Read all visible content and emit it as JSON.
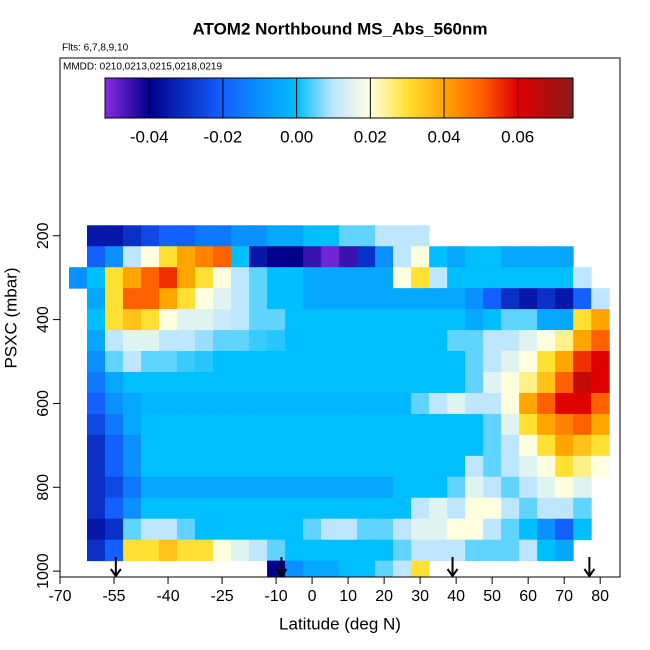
{
  "chart_data": {
    "type": "heatmap",
    "title": "ATOM2 Northbound MS_Abs_560nm",
    "subtitle": "Flts: 6,7,8,9,10",
    "annotation": "MMDD: 0210,0213,0215,0218,0219",
    "x_label": "Latitude (deg N)",
    "y_label": "PSXC (mbar)",
    "x": [
      -65,
      -60,
      -55,
      -50,
      -45,
      -40,
      -35,
      -30,
      -25,
      -20,
      -15,
      -10,
      -5,
      0,
      5,
      10,
      15,
      20,
      25,
      30,
      35,
      40,
      45,
      50,
      55,
      60,
      65,
      70,
      75,
      80
    ],
    "y": [
      200,
      250,
      300,
      350,
      400,
      450,
      500,
      550,
      600,
      650,
      700,
      750,
      800,
      850,
      900,
      950,
      1000
    ],
    "z": [
      [
        null,
        -0.035,
        -0.035,
        -0.03,
        -0.025,
        -0.02,
        -0.02,
        -0.015,
        -0.015,
        -0.01,
        -0.01,
        -0.005,
        -0.005,
        0,
        0,
        0.005,
        0.005,
        0.01,
        0.01,
        0.01,
        null,
        null,
        null,
        null,
        null,
        null,
        null,
        null,
        null,
        null
      ],
      [
        null,
        -0.02,
        -0.01,
        0.01,
        0.02,
        0.03,
        0.04,
        0.045,
        0.05,
        0,
        -0.035,
        -0.04,
        -0.04,
        -0.045,
        -0.05,
        -0.045,
        -0.03,
        -0.01,
        0.01,
        0.02,
        0,
        -0.005,
        0,
        0,
        -0.005,
        -0.005,
        -0.005,
        -0.005,
        null,
        null
      ],
      [
        -0.01,
        0,
        0.03,
        0.04,
        0.05,
        0.055,
        0.04,
        0.03,
        0.02,
        0.01,
        0.005,
        0,
        0,
        -0.005,
        -0.005,
        -0.005,
        -0.005,
        -0.005,
        0.02,
        0.03,
        0.01,
        0,
        0,
        0,
        0,
        0,
        0,
        0,
        0.01,
        null
      ],
      [
        null,
        -0.005,
        0.03,
        0.05,
        0.05,
        0.04,
        0.03,
        0.02,
        0.015,
        0.01,
        0.005,
        0,
        0,
        -0.005,
        -0.005,
        -0.005,
        -0.005,
        -0.005,
        -0.005,
        -0.005,
        -0.005,
        -0.005,
        -0.01,
        -0.02,
        -0.03,
        -0.035,
        -0.03,
        -0.035,
        -0.02,
        0.01
      ],
      [
        null,
        0,
        0.03,
        0.035,
        0.03,
        0.02,
        0.015,
        0.015,
        0.012,
        0.01,
        0.005,
        0.005,
        0,
        0,
        0,
        0,
        0,
        0,
        0,
        0,
        0,
        0,
        -0.005,
        0,
        0.005,
        0.005,
        -0.005,
        -0.005,
        0.03,
        0.04
      ],
      [
        null,
        -0.005,
        0.01,
        0.015,
        0.015,
        0.01,
        0.01,
        0.008,
        0.005,
        0.005,
        0.003,
        0.002,
        0,
        0,
        0,
        0,
        0,
        0,
        0,
        0,
        0,
        0.005,
        0.005,
        0.01,
        0.01,
        0.015,
        0.02,
        0.025,
        0.04,
        0.05
      ],
      [
        null,
        -0.01,
        0.005,
        0.01,
        0.005,
        0.005,
        0.003,
        0.002,
        0,
        0,
        0,
        0,
        0,
        0,
        0,
        0,
        0,
        0,
        0,
        0,
        0,
        0,
        0.005,
        0.01,
        0.015,
        0.02,
        0.03,
        0.04,
        0.055,
        0.06
      ],
      [
        null,
        -0.015,
        -0.005,
        0,
        0,
        0,
        0,
        0,
        0,
        0,
        0,
        0,
        0,
        0,
        0,
        0,
        0,
        0,
        0,
        0,
        0,
        0,
        0.005,
        0.015,
        0.02,
        0.025,
        0.035,
        0.05,
        0.065,
        0.06
      ],
      [
        null,
        -0.02,
        -0.01,
        -0.005,
        -0.002,
        -0.002,
        -0.002,
        -0.002,
        -0.002,
        -0.002,
        -0.002,
        -0.002,
        -0.002,
        -0.002,
        -0.002,
        -0.002,
        -0.002,
        -0.002,
        -0.002,
        0.005,
        0.01,
        0.015,
        0.01,
        0.01,
        0.02,
        0.04,
        0.05,
        0.06,
        0.06,
        0.05
      ],
      [
        null,
        -0.025,
        -0.015,
        -0.005,
        0,
        0,
        0,
        0,
        0,
        0,
        0,
        0,
        0,
        0,
        0,
        0,
        0,
        0,
        0,
        0,
        0,
        0,
        0,
        0.005,
        0.015,
        0.03,
        0.04,
        0.045,
        0.05,
        0.04
      ],
      [
        null,
        -0.03,
        -0.02,
        -0.01,
        0,
        0,
        0,
        0,
        0,
        0,
        0,
        0,
        0,
        0,
        0,
        0,
        0,
        0,
        0,
        0,
        0,
        0,
        0,
        0.005,
        0.01,
        0.02,
        0.03,
        0.04,
        0.035,
        0.03
      ],
      [
        null,
        -0.03,
        -0.02,
        -0.01,
        0,
        0,
        0,
        0,
        0,
        0,
        0,
        0,
        0,
        0,
        0,
        0,
        0,
        0,
        0,
        0,
        0,
        0,
        0.01,
        0.005,
        0.01,
        0.015,
        0.02,
        0.03,
        0.025,
        0.02
      ],
      [
        null,
        -0.03,
        -0.025,
        -0.015,
        -0.005,
        -0.005,
        -0.005,
        -0.005,
        -0.005,
        -0.005,
        -0.005,
        -0.005,
        -0.005,
        -0.005,
        -0.005,
        -0.005,
        -0.005,
        -0.005,
        0,
        0,
        0,
        0.005,
        0.015,
        0.01,
        0.005,
        0.01,
        0.015,
        0.02,
        0.015,
        null
      ],
      [
        null,
        -0.03,
        -0.02,
        -0.01,
        0,
        0,
        0,
        0,
        0,
        0,
        0,
        0,
        0,
        0,
        0,
        0,
        0,
        0,
        0,
        0.01,
        0.015,
        0.01,
        0.02,
        0.02,
        0.01,
        0.005,
        0.01,
        0.01,
        0.005,
        null
      ],
      [
        null,
        -0.035,
        -0.03,
        0.005,
        0.01,
        0.01,
        0.005,
        0,
        0,
        0,
        0,
        0,
        0,
        0.005,
        0.01,
        0.01,
        0.005,
        0.005,
        0.01,
        0.015,
        0.015,
        0.02,
        0.02,
        0.01,
        0.005,
        0,
        -0.01,
        -0.02,
        0,
        null
      ],
      [
        null,
        -0.03,
        -0.02,
        0.03,
        0.03,
        0.035,
        0.03,
        0.03,
        0.02,
        0.015,
        0.01,
        0.005,
        0,
        0,
        0,
        0,
        0,
        0,
        0.005,
        0.01,
        0.01,
        0.01,
        0.005,
        0.005,
        0.005,
        0.01,
        0,
        -0.005,
        null,
        null
      ],
      [
        null,
        null,
        null,
        null,
        null,
        null,
        null,
        null,
        null,
        null,
        null,
        -0.04,
        -0.01,
        -0.005,
        -0.005,
        0,
        0,
        0.005,
        0.01,
        0.03,
        null,
        null,
        null,
        null,
        null,
        null,
        null,
        null,
        null,
        null
      ]
    ],
    "xlim": [
      -70,
      85.5
    ],
    "ylim": [
      1014,
      -224
    ],
    "xticks": [
      -70,
      -55,
      -40,
      -25,
      -10,
      0,
      10,
      20,
      30,
      40,
      50,
      60,
      70,
      80
    ],
    "yticks": [
      200,
      400,
      600,
      800,
      1000
    ],
    "markers": [
      -54.5,
      -8.5,
      39,
      77
    ],
    "clim": [
      -0.052,
      0.075
    ],
    "cticks": [
      -0.04,
      -0.02,
      {
        "value": 0,
        "label": "0.00"
      },
      0.02,
      0.04,
      0.06
    ],
    "colorscale": [
      [
        -0.052,
        "#8a2be2"
      ],
      [
        -0.04,
        "#00008b"
      ],
      [
        -0.02,
        "#1460ff"
      ],
      [
        0,
        "#00bfff"
      ],
      [
        0.01,
        "#bfe6ff"
      ],
      [
        0.02,
        "#ffffe0"
      ],
      [
        0.03,
        "#ffe033"
      ],
      [
        0.04,
        "#ffa500"
      ],
      [
        0.05,
        "#ff6000"
      ],
      [
        0.06,
        "#e00000"
      ],
      [
        0.075,
        "#8b1a1a"
      ]
    ]
  }
}
